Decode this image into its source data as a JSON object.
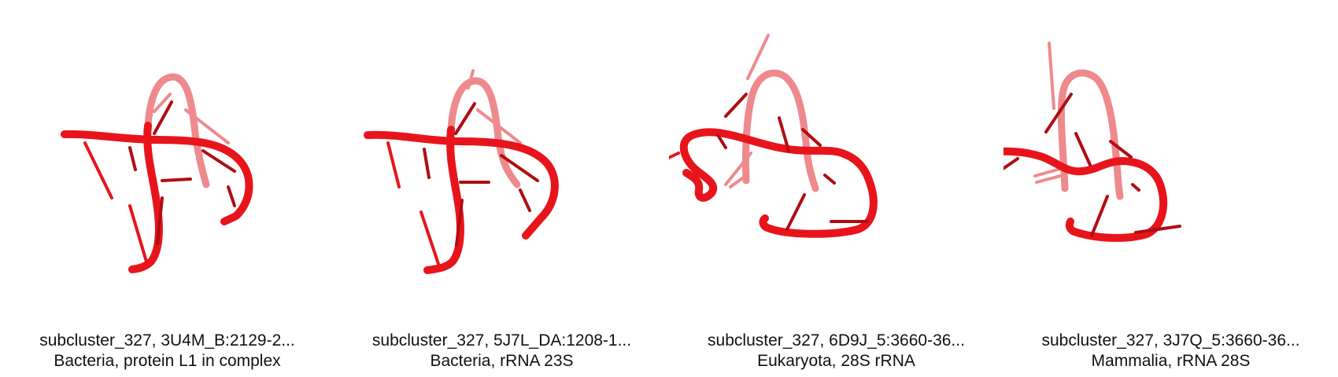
{
  "panels": [
    {
      "title": "subcluster_327, 3U4M_B:2129-2...",
      "subtitle": "Bacteria, protein L1 in complex"
    },
    {
      "title": "subcluster_327, 5J7L_DA:1208-1...",
      "subtitle": "Bacteria, rRNA 23S"
    },
    {
      "title": "subcluster_327, 6D9J_5:3660-36...",
      "subtitle": "Eukaryota, 28S rRNA"
    },
    {
      "title": "subcluster_327, 3J7Q_5:3660-36...",
      "subtitle": "Mammalia, rRNA 28S"
    }
  ],
  "colors": {
    "backbone": "#e8141c",
    "backbone_dark": "#b00d12",
    "backbone_faded": "#ee8a8e",
    "background": "#ffffff"
  }
}
